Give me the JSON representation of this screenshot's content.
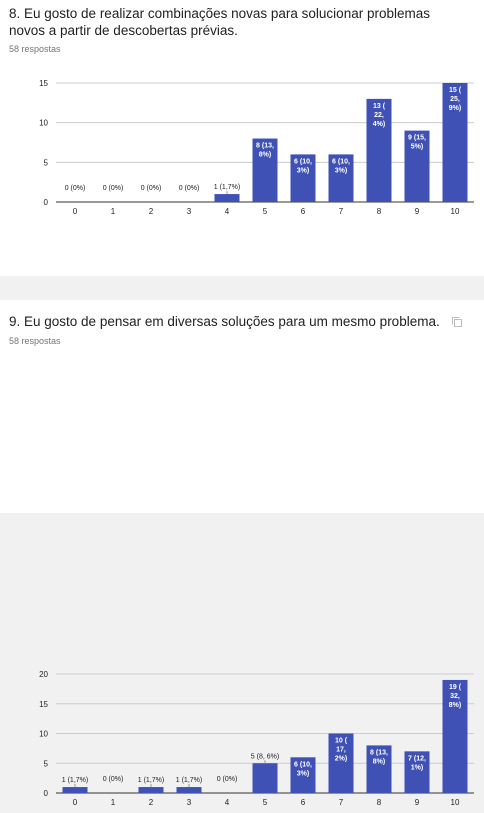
{
  "chart_data": [
    {
      "type": "bar",
      "title": "8. Eu gosto de realizar combinações novas para solucionar problemas novos a partir de descobertas prévias.",
      "subtitle": "58 respostas",
      "categories": [
        "0",
        "1",
        "2",
        "3",
        "4",
        "5",
        "6",
        "7",
        "8",
        "9",
        "10"
      ],
      "values": [
        0,
        0,
        0,
        0,
        1,
        8,
        6,
        6,
        13,
        9,
        15
      ],
      "data_labels": [
        "0 (0%)",
        "0 (0%)",
        "0 (0%)",
        "0 (0%)",
        "1 (1,7%)",
        "8 (13, 8%)",
        "6 (10, 3%)",
        "6 (10, 3%)",
        "13 ( 22, 4%)",
        "9 (15, 5%)",
        "15 ( 25, 9%)"
      ],
      "y_ticks": [
        "0",
        "5",
        "10",
        "15"
      ],
      "ylim": [
        0,
        15
      ],
      "grid": true,
      "bar_color": "#3f51b5"
    },
    {
      "type": "bar",
      "title": "9. Eu gosto de pensar em diversas soluções para um mesmo problema.",
      "subtitle": "58 respostas",
      "categories": [
        "0",
        "1",
        "2",
        "3",
        "4",
        "5",
        "6",
        "7",
        "8",
        "9",
        "10"
      ],
      "values": [
        1,
        0,
        1,
        1,
        0,
        5,
        6,
        10,
        8,
        7,
        19
      ],
      "data_labels": [
        "1 (1,7%)",
        "0 (0%)",
        "1 (1,7%)",
        "1 (1,7%)",
        "0 (0%)",
        "5 (8, 6%)",
        "6 (10, 3%)",
        "10 ( 17, 2%)",
        "8 (13, 8%)",
        "7 (12, 1%)",
        "19 ( 32, 8%)"
      ],
      "y_ticks": [
        "0",
        "5",
        "10",
        "15",
        "20"
      ],
      "ylim": [
        0,
        20
      ],
      "grid": true,
      "bar_color": "#3f51b5"
    }
  ],
  "icons": {
    "copy": "copy-chart-icon"
  }
}
